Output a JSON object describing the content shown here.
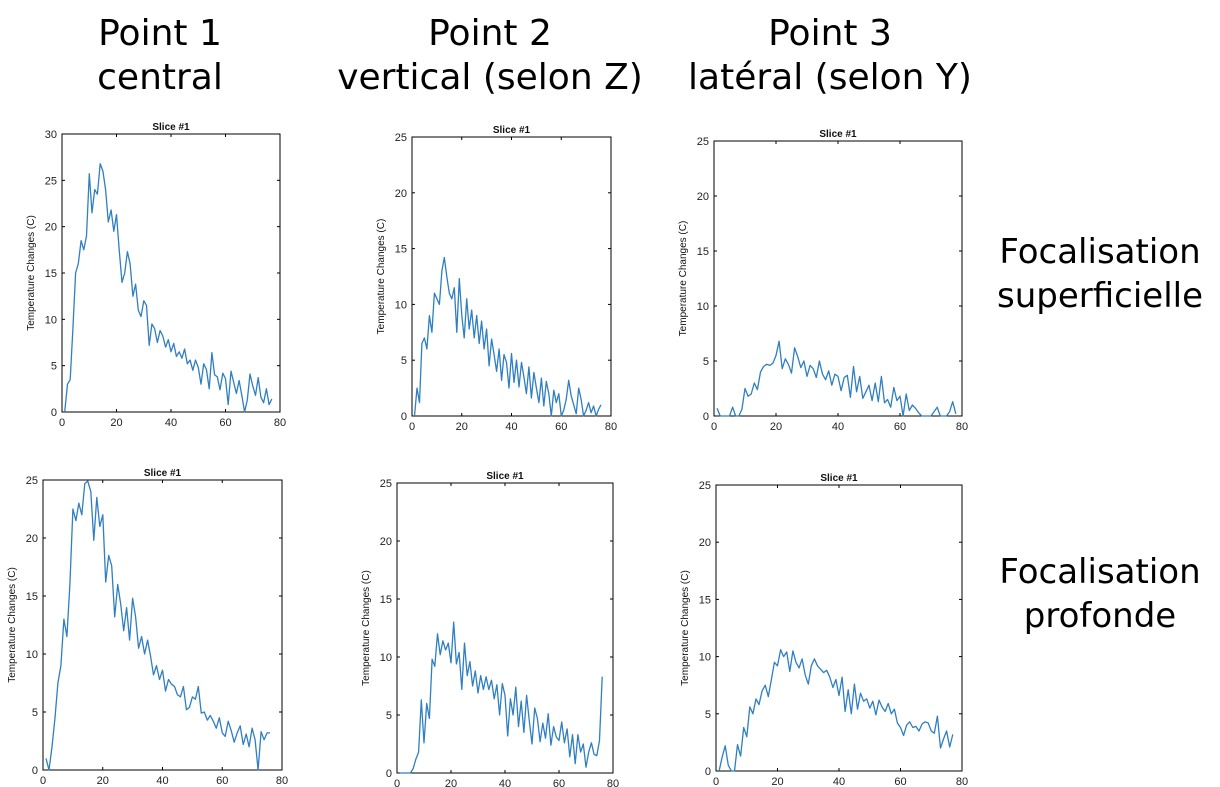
{
  "column_headers": [
    {
      "line1": "Point 1",
      "line2": "central"
    },
    {
      "line1": "Point 2",
      "line2": "vertical (selon Z)"
    },
    {
      "line1": "Point 3",
      "line2": "latéral (selon Y)"
    }
  ],
  "row_labels": [
    {
      "line1": "Focalisation",
      "line2": "superficielle"
    },
    {
      "line1": "Focalisation",
      "line2": "profonde"
    }
  ],
  "colors": {
    "line": "#2f7fc1",
    "axis": "#000000"
  },
  "chart_data": [
    {
      "type": "line",
      "title": "Slice #1",
      "ylabel": "Temperature Changes (C)",
      "xlim": [
        0,
        80
      ],
      "ylim": [
        0,
        30
      ],
      "xticks": [
        0,
        20,
        40,
        60,
        80
      ],
      "yticks": [
        0,
        5,
        10,
        15,
        20,
        25,
        30
      ],
      "series": [
        {
          "x": [
            1,
            2,
            3,
            4,
            5,
            6,
            7,
            8,
            9,
            10,
            11,
            12,
            13,
            14,
            15,
            16,
            17,
            18,
            19,
            20,
            21,
            22,
            23,
            24,
            25,
            26,
            27,
            28,
            29,
            30,
            31,
            32,
            33,
            34,
            35,
            36,
            37,
            38,
            39,
            40,
            41,
            42,
            43,
            44,
            45,
            46,
            47,
            48,
            49,
            50,
            51,
            52,
            53,
            54,
            55,
            56,
            57,
            58,
            59,
            60,
            61,
            62,
            63,
            64,
            65,
            66,
            67,
            68,
            69,
            70,
            71,
            72,
            73,
            74,
            75,
            76,
            77
          ],
          "y": [
            0,
            3,
            3.5,
            9,
            15,
            16,
            18.5,
            17.5,
            19,
            25.7,
            21.5,
            24,
            23.5,
            26.8,
            26,
            24,
            20.5,
            21.8,
            19.5,
            21.3,
            17.5,
            14,
            15,
            17.3,
            16,
            12.5,
            13.8,
            11,
            10.3,
            12,
            11.5,
            7.2,
            9.5,
            9,
            7.5,
            8.8,
            8.2,
            7,
            7.8,
            6.5,
            7.4,
            6,
            6.5,
            5.8,
            6.8,
            5.2,
            5.6,
            4.5,
            5.6,
            4.8,
            3,
            5.2,
            4.6,
            2.5,
            6.4,
            4,
            3.8,
            2.4,
            4.2,
            3.6,
            0.8,
            4.4,
            3.2,
            2,
            3.4,
            1.8,
            0,
            1.3,
            4.1,
            2.8,
            1.8,
            3.7,
            1.6,
            1,
            2.5,
            0.8,
            1.4
          ]
        }
      ]
    },
    {
      "type": "line",
      "title": "Slice #1",
      "ylabel": "Temperature Changes (C)",
      "xlim": [
        0,
        80
      ],
      "ylim": [
        0,
        25
      ],
      "xticks": [
        0,
        20,
        40,
        60,
        80
      ],
      "yticks": [
        0,
        5,
        10,
        15,
        20,
        25
      ],
      "series": [
        {
          "x": [
            1,
            2,
            3,
            4,
            5,
            6,
            7,
            8,
            9,
            10,
            11,
            12,
            13,
            14,
            15,
            16,
            17,
            18,
            19,
            20,
            21,
            22,
            23,
            24,
            25,
            26,
            27,
            28,
            29,
            30,
            31,
            32,
            33,
            34,
            35,
            36,
            37,
            38,
            39,
            40,
            41,
            42,
            43,
            44,
            45,
            46,
            47,
            48,
            49,
            50,
            51,
            52,
            53,
            54,
            55,
            56,
            57,
            58,
            59,
            60,
            61,
            62,
            63,
            64,
            65,
            66,
            67,
            68,
            69,
            70,
            71,
            72,
            73,
            74,
            75,
            76
          ],
          "y": [
            0,
            2.5,
            1.2,
            6.5,
            7,
            6,
            9,
            7.5,
            11,
            10.5,
            10,
            13,
            14.2,
            12.5,
            11,
            10.5,
            11.5,
            7.5,
            12.3,
            9,
            7,
            10.5,
            7.8,
            9.5,
            7,
            9,
            6.5,
            8.5,
            6,
            7.8,
            4.5,
            6.9,
            5.5,
            4,
            6,
            3.2,
            5.5,
            4.8,
            2.5,
            5.6,
            3,
            5,
            2.6,
            4.8,
            3.5,
            2,
            4.4,
            1.6,
            3.9,
            2.5,
            1.2,
            3.4,
            0.9,
            3.1,
            2,
            0,
            2.3,
            1.2,
            2,
            0,
            0.5,
            1.5,
            3.2,
            1.8,
            1,
            0.2,
            2.5,
            1.5,
            0,
            0.5,
            1.2,
            0.3,
            0.9,
            0,
            0.6,
            1
          ]
        }
      ]
    },
    {
      "type": "line",
      "title": "Slice #1",
      "ylabel": "Temperature Changes (C)",
      "xlim": [
        0,
        80
      ],
      "ylim": [
        0,
        25
      ],
      "xticks": [
        0,
        20,
        40,
        60,
        80
      ],
      "yticks": [
        0,
        5,
        10,
        15,
        20,
        25
      ],
      "series": [
        {
          "x": [
            1,
            2,
            3,
            4,
            5,
            6,
            7,
            8,
            9,
            10,
            11,
            12,
            13,
            14,
            15,
            16,
            17,
            18,
            19,
            20,
            21,
            22,
            23,
            24,
            25,
            26,
            27,
            28,
            29,
            30,
            31,
            32,
            33,
            34,
            35,
            36,
            37,
            38,
            39,
            40,
            41,
            42,
            43,
            44,
            45,
            46,
            47,
            48,
            49,
            50,
            51,
            52,
            53,
            54,
            55,
            56,
            57,
            58,
            59,
            60,
            61,
            62,
            63,
            64,
            65,
            66,
            67,
            68,
            69,
            70,
            71,
            72,
            73,
            74,
            75,
            76,
            77,
            78
          ],
          "y": [
            0.7,
            0,
            0,
            0,
            0,
            0.8,
            0,
            0,
            0.6,
            2.5,
            1.8,
            2,
            3,
            2.4,
            4,
            4.5,
            4.7,
            4.6,
            4.8,
            5.5,
            6.8,
            4.3,
            5.2,
            4.7,
            3.9,
            6.2,
            5.4,
            4.4,
            5,
            3.6,
            4.6,
            4.3,
            3.5,
            5,
            3.8,
            3.3,
            4.1,
            2.8,
            3.8,
            3.6,
            2.3,
            3.5,
            3.7,
            1.7,
            4.5,
            2.2,
            3.6,
            1.6,
            2.2,
            2.8,
            1.4,
            3,
            1.3,
            3.6,
            1.2,
            1.5,
            0.8,
            2.6,
            1.4,
            1.8,
            0,
            2,
            0.5,
            1,
            0.7,
            0.3,
            0,
            0,
            0,
            0,
            0.4,
            0.8,
            0,
            0,
            0,
            0.4,
            1.3,
            0.2
          ]
        }
      ]
    },
    {
      "type": "line",
      "title": "Slice #1",
      "ylabel": "Temperature Changes (C)",
      "xlim": [
        0,
        80
      ],
      "ylim": [
        0,
        25
      ],
      "xticks": [
        0,
        20,
        40,
        60,
        80
      ],
      "yticks": [
        0,
        5,
        10,
        15,
        20,
        25
      ],
      "series": [
        {
          "x": [
            1,
            2,
            3,
            4,
            5,
            6,
            7,
            8,
            9,
            10,
            11,
            12,
            13,
            14,
            15,
            16,
            17,
            18,
            19,
            20,
            21,
            22,
            23,
            24,
            25,
            26,
            27,
            28,
            29,
            30,
            31,
            32,
            33,
            34,
            35,
            36,
            37,
            38,
            39,
            40,
            41,
            42,
            43,
            44,
            45,
            46,
            47,
            48,
            49,
            50,
            51,
            52,
            53,
            54,
            55,
            56,
            57,
            58,
            59,
            60,
            61,
            62,
            63,
            64,
            65,
            66,
            67,
            68,
            69,
            70,
            71,
            72,
            73,
            74,
            75,
            76
          ],
          "y": [
            1,
            0,
            2,
            4.5,
            7.5,
            9,
            13,
            11.5,
            16,
            22.5,
            21.5,
            23,
            22,
            24.7,
            24.9,
            24,
            19.8,
            23.5,
            21,
            22,
            16.2,
            18.5,
            17.6,
            13.2,
            16,
            14.3,
            12,
            14,
            11.2,
            14.8,
            13.2,
            10.5,
            11.5,
            10,
            11.2,
            9.8,
            8.2,
            9,
            7.8,
            8.6,
            6.8,
            7.8,
            7.4,
            7.2,
            6.5,
            6.3,
            7.2,
            5.2,
            5.4,
            6.3,
            6.1,
            7.2,
            4.9,
            5,
            4.3,
            4.7,
            4.2,
            3.6,
            4.5,
            3.2,
            2.9,
            4.2,
            3.4,
            2.4,
            3.2,
            3.8,
            2.2,
            3.1,
            2,
            3.6,
            2.6,
            0,
            3.3,
            2.6,
            3.2,
            3.2
          ]
        }
      ]
    },
    {
      "type": "line",
      "title": "Slice #1",
      "ylabel": "Temperature Changes (C)",
      "xlim": [
        0,
        80
      ],
      "ylim": [
        0,
        25
      ],
      "xticks": [
        0,
        20,
        40,
        60,
        80
      ],
      "yticks": [
        0,
        5,
        10,
        15,
        20,
        25
      ],
      "series": [
        {
          "x": [
            1,
            2,
            3,
            4,
            5,
            6,
            7,
            8,
            9,
            10,
            11,
            12,
            13,
            14,
            15,
            16,
            17,
            18,
            19,
            20,
            21,
            22,
            23,
            24,
            25,
            26,
            27,
            28,
            29,
            30,
            31,
            32,
            33,
            34,
            35,
            36,
            37,
            38,
            39,
            40,
            41,
            42,
            43,
            44,
            45,
            46,
            47,
            48,
            49,
            50,
            51,
            52,
            53,
            54,
            55,
            56,
            57,
            58,
            59,
            60,
            61,
            62,
            63,
            64,
            65,
            66,
            67,
            68,
            69,
            70,
            71,
            72,
            73,
            74,
            75,
            76
          ],
          "y": [
            0,
            0,
            0,
            0,
            0,
            0.4,
            1.2,
            1.8,
            6.3,
            2.6,
            6,
            4.7,
            9.8,
            9.2,
            12,
            10.2,
            11.4,
            10.6,
            11.2,
            9.5,
            13,
            9.4,
            10.4,
            7.2,
            11.2,
            8.4,
            9.6,
            7.5,
            8.8,
            6.9,
            8.4,
            7.2,
            8.3,
            7.2,
            8,
            6.4,
            7.6,
            5,
            7.7,
            6.7,
            3.2,
            6.4,
            5,
            7.4,
            4,
            6.2,
            3.5,
            6.7,
            4.5,
            2.5,
            5.6,
            4.7,
            2.7,
            4.3,
            3,
            5.1,
            2.4,
            4,
            3.1,
            2.8,
            4.4,
            2.6,
            3.8,
            1.4,
            3.3,
            0.8,
            3.3,
            1.8,
            2.5,
            0.5,
            1.8,
            2.6,
            1.6,
            1.5,
            2.8,
            8.3
          ]
        }
      ]
    },
    {
      "type": "line",
      "title": "Slice #1",
      "ylabel": "Temperature Changes (C)",
      "xlim": [
        0,
        80
      ],
      "ylim": [
        0,
        25
      ],
      "xticks": [
        0,
        20,
        40,
        60,
        80
      ],
      "yticks": [
        0,
        5,
        10,
        15,
        20,
        25
      ],
      "series": [
        {
          "x": [
            1,
            2,
            3,
            4,
            5,
            6,
            7,
            8,
            9,
            10,
            11,
            12,
            13,
            14,
            15,
            16,
            17,
            18,
            19,
            20,
            21,
            22,
            23,
            24,
            25,
            26,
            27,
            28,
            29,
            30,
            31,
            32,
            33,
            34,
            35,
            36,
            37,
            38,
            39,
            40,
            41,
            42,
            43,
            44,
            45,
            46,
            47,
            48,
            49,
            50,
            51,
            52,
            53,
            54,
            55,
            56,
            57,
            58,
            59,
            60,
            61,
            62,
            63,
            64,
            65,
            66,
            67,
            68,
            69,
            70,
            71,
            72,
            73,
            74,
            75,
            76,
            77
          ],
          "y": [
            0,
            1.2,
            2.2,
            0.5,
            0,
            0,
            2.3,
            1.3,
            3.8,
            3,
            5.6,
            5,
            6.3,
            5.8,
            7,
            7.5,
            6.5,
            8,
            9.5,
            9.2,
            10.6,
            10,
            10.4,
            8.7,
            10.5,
            9.5,
            9,
            9.8,
            8.4,
            7.6,
            9.2,
            9.8,
            9.2,
            8.9,
            8.6,
            8.8,
            8.2,
            7.3,
            8,
            6.6,
            8.2,
            5.2,
            7.1,
            5,
            7.6,
            5.4,
            6.8,
            6.1,
            6.3,
            5.5,
            6.1,
            4.9,
            6.2,
            5.6,
            5.2,
            5.9,
            5,
            5.4,
            4.2,
            3.8,
            3.1,
            4,
            4.3,
            3.8,
            3.9,
            3.5,
            4.1,
            4.3,
            4.2,
            3.5,
            3.3,
            4.8,
            2,
            2.8,
            3.5,
            2.1,
            3.2
          ]
        }
      ]
    }
  ]
}
